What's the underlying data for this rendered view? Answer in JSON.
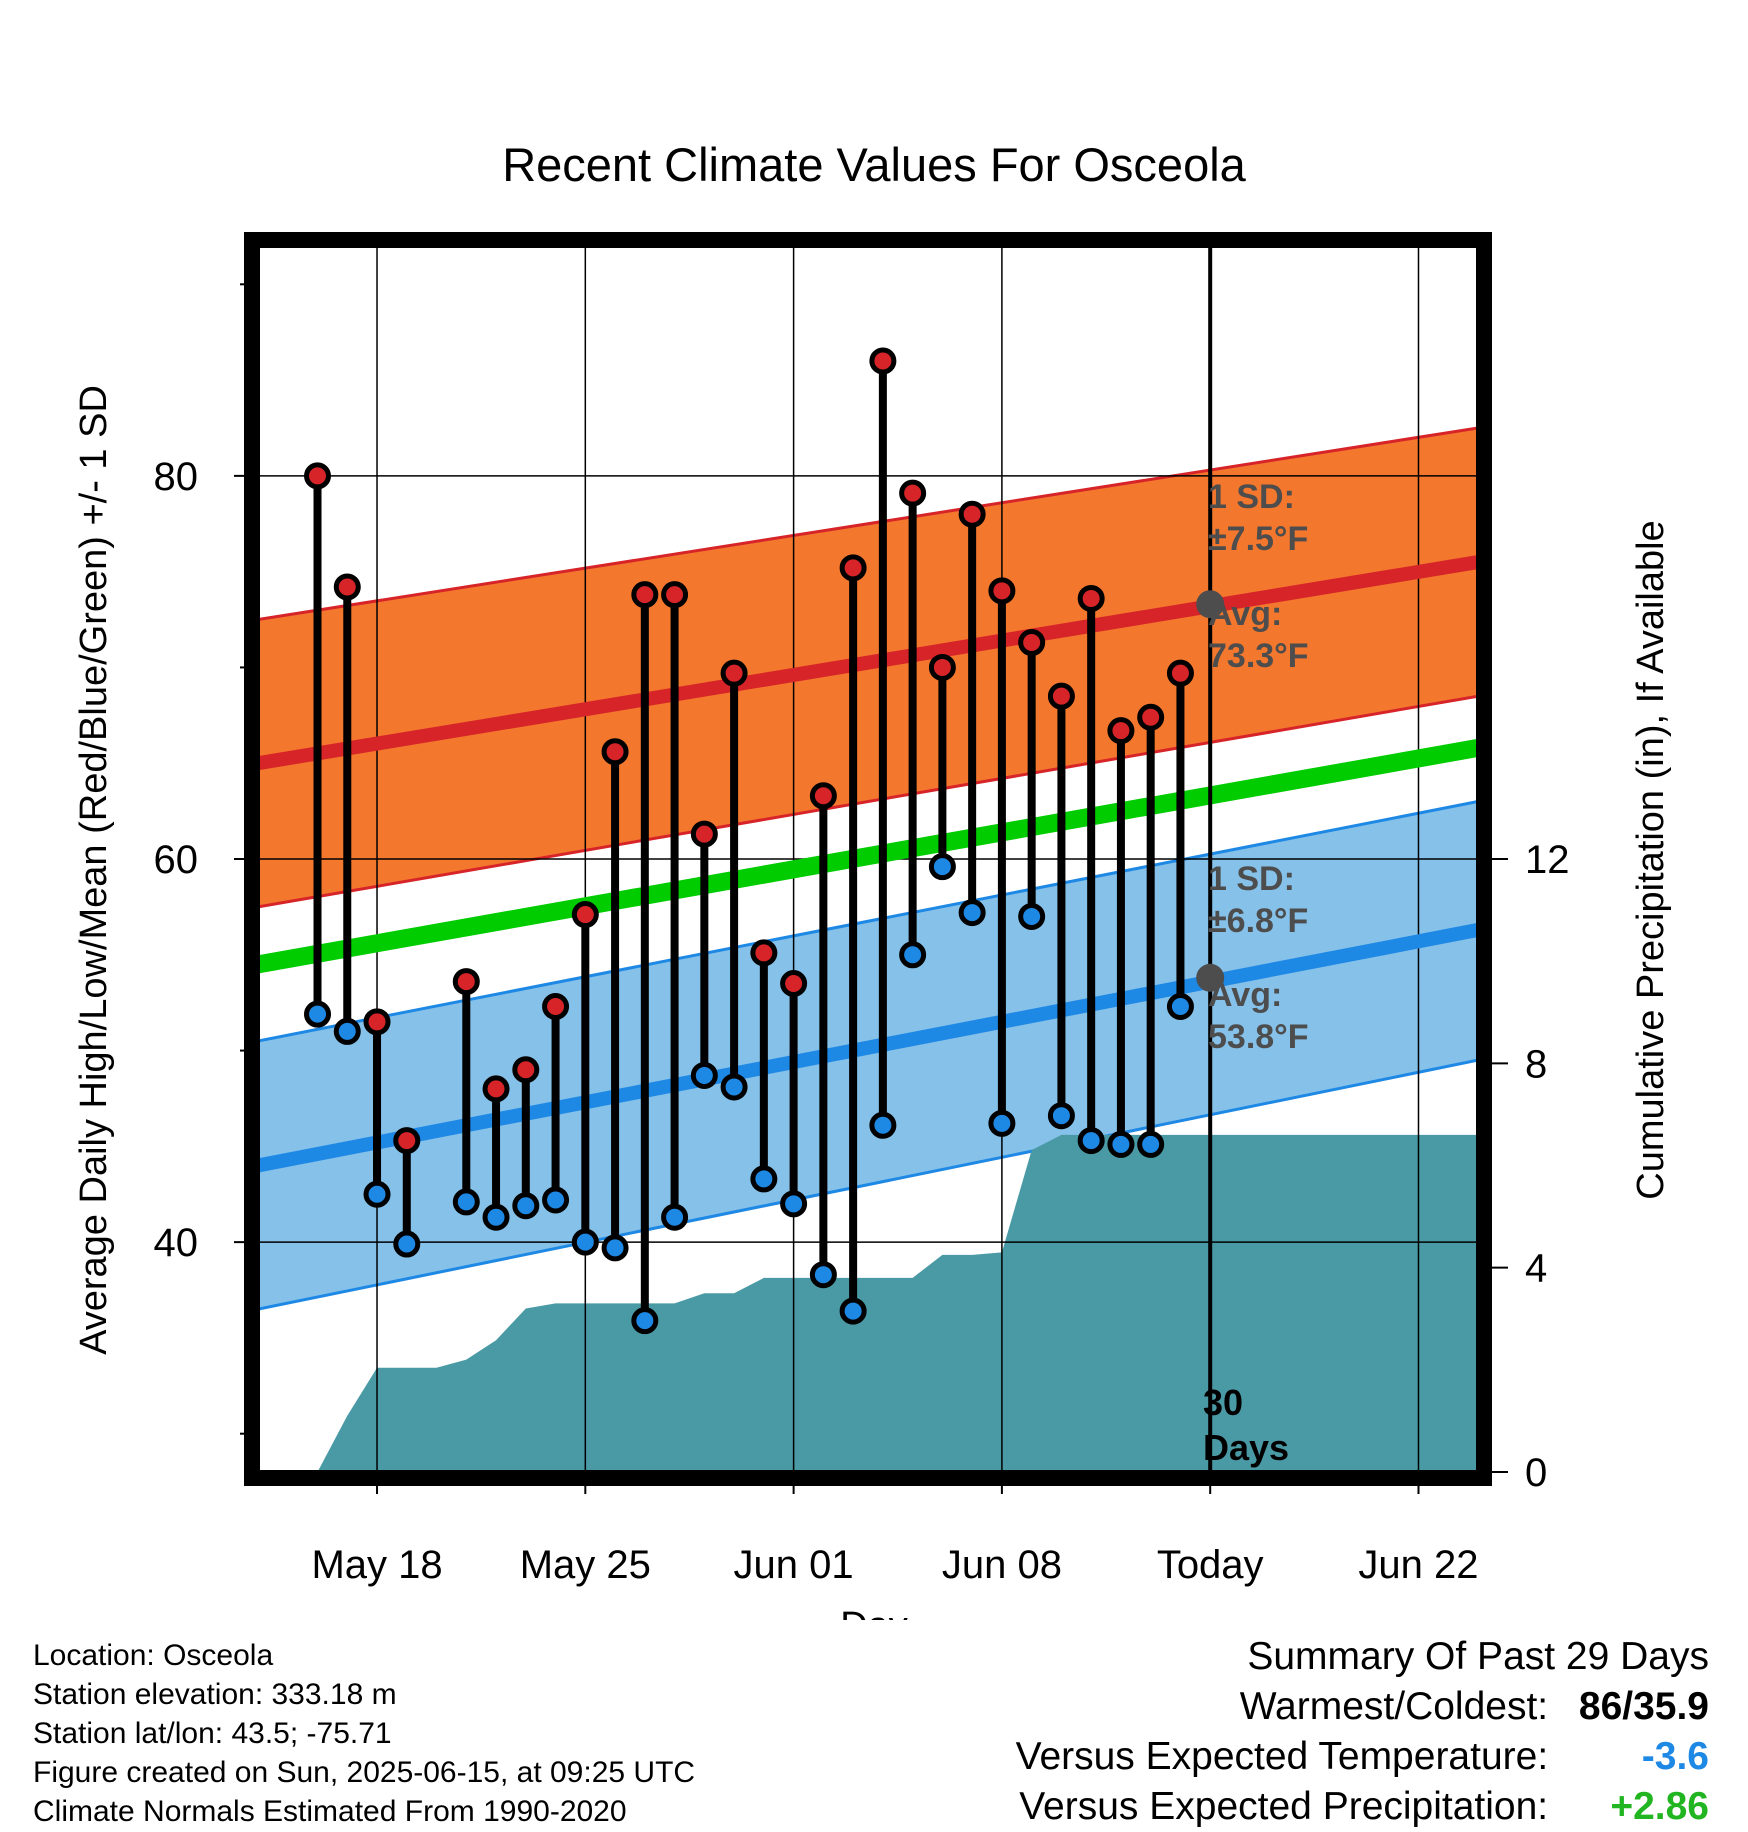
{
  "chart_data": {
    "type": "line",
    "title": "Recent Climate Values For Osceola",
    "xlabel": "Day",
    "ylabel_left": "Average Daily High/Low/Mean (Red/Blue/Green) +/- 1 SD",
    "ylabel_right": "Cumulative Precipitation (in), If Available",
    "x_ticks": [
      {
        "date": "2025-05-18",
        "label": "May 18"
      },
      {
        "date": "2025-05-25",
        "label": "May 25"
      },
      {
        "date": "2025-06-01",
        "label": "Jun 01"
      },
      {
        "date": "2025-06-08",
        "label": "Jun 08"
      },
      {
        "date": "2025-06-15",
        "label": "Today"
      },
      {
        "date": "2025-06-22",
        "label": "Jun 22"
      }
    ],
    "xlim": [
      "2025-05-14",
      "2025-06-24"
    ],
    "ylim_left": [
      28,
      92
    ],
    "y_ticks_left": [
      40,
      60,
      80
    ],
    "ylim_right": [
      0,
      24
    ],
    "y_ticks_right": [
      0,
      4,
      8,
      12
    ],
    "grid": true,
    "today_date": "2025-06-15",
    "dates": [
      "2025-05-16",
      "2025-05-17",
      "2025-05-18",
      "2025-05-19",
      "2025-05-20",
      "2025-05-21",
      "2025-05-22",
      "2025-05-23",
      "2025-05-24",
      "2025-05-25",
      "2025-05-26",
      "2025-05-27",
      "2025-05-28",
      "2025-05-29",
      "2025-05-30",
      "2025-05-31",
      "2025-06-01",
      "2025-06-02",
      "2025-06-03",
      "2025-06-04",
      "2025-06-05",
      "2025-06-06",
      "2025-06-07",
      "2025-06-08",
      "2025-06-09",
      "2025-06-10",
      "2025-06-11",
      "2025-06-12",
      "2025-06-13",
      "2025-06-14"
    ],
    "high": [
      80,
      74.2,
      51.5,
      45.3,
      null,
      53.6,
      48,
      49,
      52.3,
      57.1,
      65.6,
      73.8,
      73.8,
      61.3,
      69.7,
      55.1,
      53.5,
      63.3,
      75.2,
      86,
      79.1,
      70,
      78,
      74,
      71.3,
      68.5,
      73.6,
      66.7,
      67.4,
      69.7
    ],
    "low": [
      51.9,
      51,
      42.5,
      39.9,
      null,
      42.1,
      41.3,
      41.9,
      42.2,
      40,
      39.7,
      35.9,
      41.3,
      48.7,
      48.1,
      43.3,
      42,
      38.3,
      36.4,
      46.1,
      55,
      59.6,
      57.2,
      46.2,
      57,
      46.6,
      45.3,
      45.1,
      45.1,
      52.3
    ],
    "normals": {
      "dates": [
        "2025-05-14",
        "2025-06-24"
      ],
      "high_mean": [
        65,
        75.5
      ],
      "high_sd_band": [
        [
          57.5,
          72.5
        ],
        [
          68.5,
          82.5
        ]
      ],
      "low_mean": [
        44,
        56.3
      ],
      "low_sd_band": [
        [
          36.5,
          50.5
        ],
        [
          49.5,
          63
        ]
      ],
      "mean": [
        54.5,
        65.8
      ],
      "colors": {
        "high_band": "#f4772e",
        "high_line": "#d62428",
        "high_band_edge": "#d62428",
        "low_band": "#85c1e9",
        "low_line": "#1e88e5",
        "low_band_edge": "#1e88e5",
        "mean_line": "#00cc00"
      }
    },
    "precip_cumulative": {
      "dates": [
        "2025-05-15",
        "2025-05-16",
        "2025-05-17",
        "2025-05-18",
        "2025-05-19",
        "2025-05-20",
        "2025-05-21",
        "2025-05-22",
        "2025-05-23",
        "2025-05-24",
        "2025-05-25",
        "2025-05-26",
        "2025-05-27",
        "2025-05-28",
        "2025-05-29",
        "2025-05-30",
        "2025-05-31",
        "2025-06-01",
        "2025-06-02",
        "2025-06-03",
        "2025-06-04",
        "2025-06-05",
        "2025-06-06",
        "2025-06-07",
        "2025-06-08",
        "2025-06-09",
        "2025-06-10",
        "2025-06-11",
        "2025-06-12",
        "2025-06-13",
        "2025-06-14",
        "2025-06-24"
      ],
      "values": [
        0,
        0,
        1.1,
        2.04,
        2.04,
        2.04,
        2.2,
        2.58,
        3.2,
        3.3,
        3.3,
        3.3,
        3.3,
        3.3,
        3.5,
        3.5,
        3.8,
        3.8,
        3.8,
        3.8,
        3.8,
        3.8,
        4.25,
        4.25,
        4.3,
        6.3,
        6.6,
        6.6,
        6.6,
        6.6,
        6.6,
        6.6
      ],
      "color": "#4a9aa5"
    },
    "annotations": {
      "high_sd": {
        "line1": "1 SD:",
        "line2": "±7.5°F"
      },
      "high_avg": {
        "line1": "Avg:",
        "line2": "73.3°F",
        "value": 73.3
      },
      "low_sd": {
        "line1": "1 SD:",
        "line2": "±6.8°F"
      },
      "low_avg": {
        "line1": "Avg:",
        "line2": "53.8°F",
        "value": 53.8
      },
      "window": {
        "line1": "30",
        "line2": "Days"
      }
    }
  },
  "info": {
    "location": "Location: Osceola",
    "elevation": "Station elevation: 333.18 m",
    "latlon": "Station lat/lon: 43.5; -75.71",
    "created": "Figure created on Sun, 2025-06-15, at 09:25 UTC",
    "normals": "Climate Normals Estimated From 1990-2020"
  },
  "summary": {
    "heading": "Summary Of Past 29 Days",
    "warmest_label": "Warmest/Coldest:",
    "warmest_value": "86/35.9",
    "temp_label": "Versus Expected Temperature:",
    "temp_value": "-3.6",
    "temp_color": "#1e88e5",
    "precip_label": "Versus Expected Precipitation:",
    "precip_value": "+2.86",
    "precip_color": "#22b522"
  }
}
